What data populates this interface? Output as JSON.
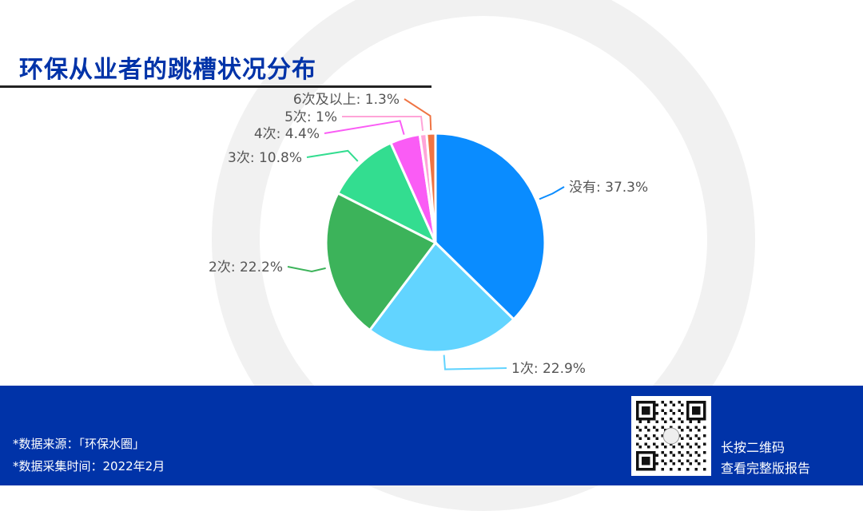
{
  "title": "环保从业者的跳槽状况分布",
  "chart_data": {
    "type": "pie",
    "title": "环保从业者的跳槽状况分布",
    "categories": [
      "没有",
      "1次",
      "2次",
      "3次",
      "4次",
      "5次",
      "6次及以上"
    ],
    "values": [
      37.3,
      22.9,
      22.2,
      10.8,
      4.4,
      1,
      1.3
    ],
    "labels": [
      "没有: 37.3%",
      "1次: 22.9%",
      "2次: 22.2%",
      "3次: 10.8%",
      "4次: 4.4%",
      "5次: 1%",
      "6次及以上: 1.3%"
    ],
    "colors": [
      "#0a8cff",
      "#62d4ff",
      "#3cb35a",
      "#33dd90",
      "#fa5cf5",
      "#ffa4d8",
      "#ef7443"
    ],
    "start": "top",
    "direction": "clockwise"
  },
  "footer": {
    "source": "*数据来源：「环保水圈」",
    "time": "*数据采集时间：2022年2月",
    "qr_line1": "长按二维码",
    "qr_line2": "查看完整版报告"
  }
}
